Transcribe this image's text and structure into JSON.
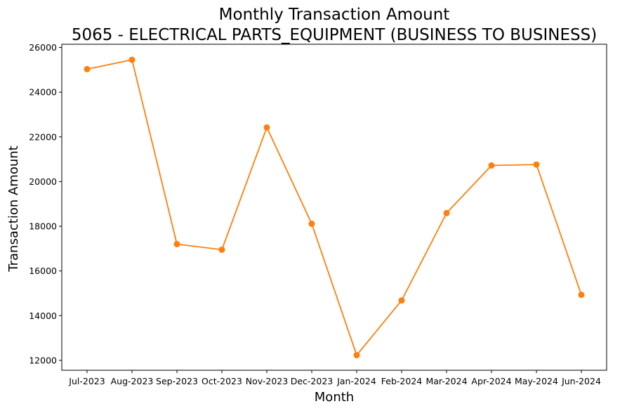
{
  "chart_data": {
    "type": "line",
    "title": "Monthly Transaction Amount",
    "subtitle": "5065 - ELECTRICAL PARTS_EQUIPMENT (BUSINESS TO BUSINESS)",
    "xlabel": "Month",
    "ylabel": "Transaction Amount",
    "categories": [
      "Jul-2023",
      "Aug-2023",
      "Sep-2023",
      "Oct-2023",
      "Nov-2023",
      "Dec-2023",
      "Jan-2024",
      "Feb-2024",
      "Mar-2024",
      "Apr-2024",
      "May-2024",
      "Jun-2024"
    ],
    "series": [
      {
        "values": [
          25030,
          25450,
          17200,
          16950,
          22420,
          18110,
          12230,
          14680,
          18590,
          20720,
          20760,
          14930
        ],
        "color": "#ff7f0e",
        "marker": "circle"
      }
    ],
    "yticks": [
      12000,
      14000,
      16000,
      18000,
      20000,
      22000,
      24000,
      26000
    ],
    "ylim": [
      11556,
      26144
    ],
    "grid": false,
    "legend": "none"
  }
}
